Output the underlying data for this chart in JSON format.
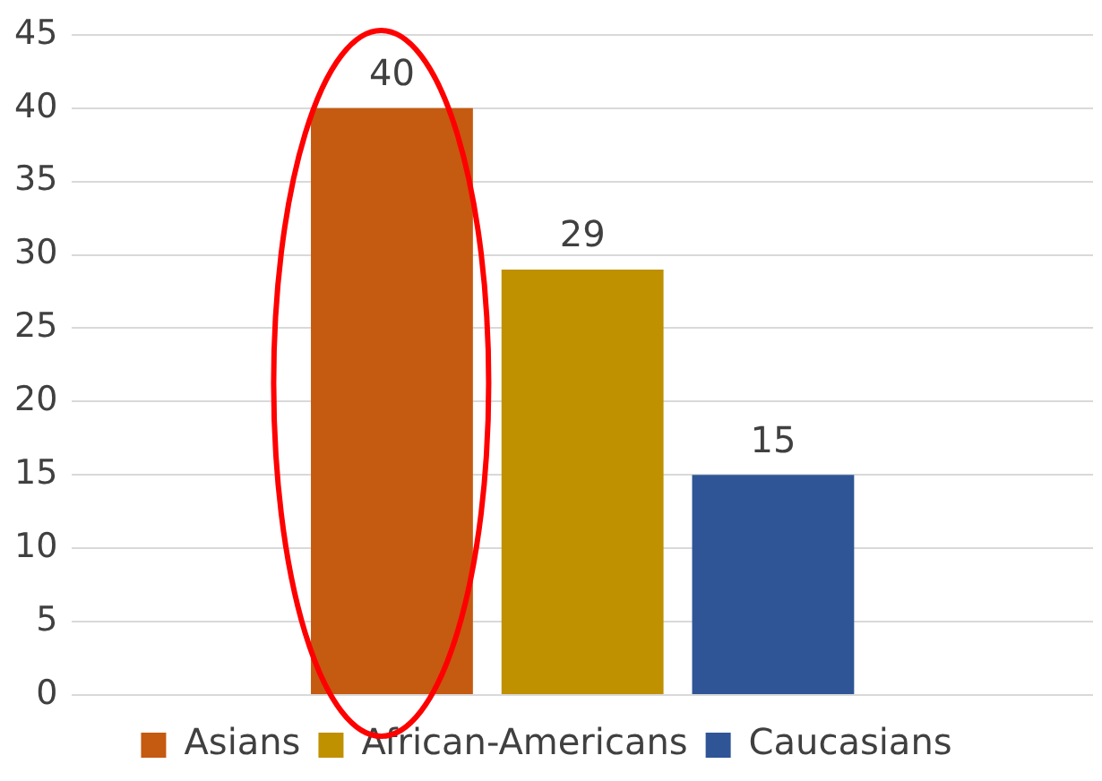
{
  "chart_data": {
    "type": "bar",
    "categories": [
      null
    ],
    "series": [
      {
        "name": "Asians",
        "color": "#c55a11",
        "values": [
          40
        ]
      },
      {
        "name": "African-Americans",
        "color": "#bf9000",
        "values": [
          29
        ]
      },
      {
        "name": "Caucasians",
        "color": "#2f5597",
        "values": [
          15
        ]
      }
    ],
    "ylim": [
      0,
      45
    ],
    "yticks": [
      0,
      5,
      10,
      15,
      20,
      25,
      30,
      35,
      40,
      45
    ],
    "grid": "y",
    "legend": "bottom",
    "data_labels": true
  }
}
